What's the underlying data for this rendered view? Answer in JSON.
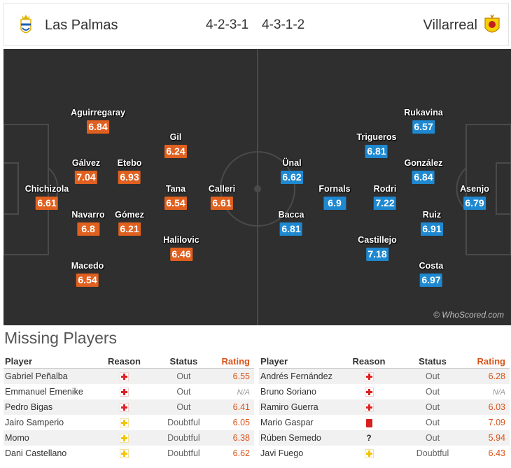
{
  "header": {
    "home_team": "Las Palmas",
    "home_formation": "4-2-3-1",
    "away_formation": "4-3-1-2",
    "away_team": "Villarreal",
    "home_crest_icon": "las-palmas-crest-icon",
    "away_crest_icon": "villarreal-crest-icon"
  },
  "colors": {
    "home": "#e0601f",
    "away": "#1e88d0",
    "pitch": "#2f2f2f"
  },
  "pitch": {
    "watermark": "© WhoScored.com",
    "home_players": [
      {
        "name": "Aguirregaray",
        "rating": "6.84"
      },
      {
        "name": "Gil",
        "rating": "6.24"
      },
      {
        "name": "Gálvez",
        "rating": "7.04"
      },
      {
        "name": "Etebo",
        "rating": "6.93"
      },
      {
        "name": "Chichizola",
        "rating": "6.61"
      },
      {
        "name": "Tana",
        "rating": "6.54"
      },
      {
        "name": "Calleri",
        "rating": "6.61"
      },
      {
        "name": "Navarro",
        "rating": "6.8"
      },
      {
        "name": "Gómez",
        "rating": "6.21"
      },
      {
        "name": "Halilovic",
        "rating": "6.46"
      },
      {
        "name": "Macedo",
        "rating": "6.54"
      }
    ],
    "away_players": [
      {
        "name": "Rukavina",
        "rating": "6.57"
      },
      {
        "name": "Trigueros",
        "rating": "6.81"
      },
      {
        "name": "Ünal",
        "rating": "6.62"
      },
      {
        "name": "González",
        "rating": "6.84"
      },
      {
        "name": "Fornals",
        "rating": "6.9"
      },
      {
        "name": "Rodri",
        "rating": "7.22"
      },
      {
        "name": "Asenjo",
        "rating": "6.79"
      },
      {
        "name": "Bacca",
        "rating": "6.81"
      },
      {
        "name": "Ruiz",
        "rating": "6.91"
      },
      {
        "name": "Castillejo",
        "rating": "7.18"
      },
      {
        "name": "Costa",
        "rating": "6.97"
      }
    ]
  },
  "missing": {
    "title": "Missing Players",
    "columns": {
      "player": "Player",
      "reason": "Reason",
      "status": "Status",
      "rating": "Rating"
    },
    "home": [
      {
        "player": "Gabriel Peñalba",
        "reason": "injury-icon",
        "status": "Out",
        "rating": "6.55"
      },
      {
        "player": "Emmanuel Emenike",
        "reason": "injury-icon",
        "status": "Out",
        "rating": "N/A"
      },
      {
        "player": "Pedro Bigas",
        "reason": "injury-icon",
        "status": "Out",
        "rating": "6.41"
      },
      {
        "player": "Jairo Samperio",
        "reason": "doubtful-icon",
        "status": "Doubtful",
        "rating": "6.05"
      },
      {
        "player": "Momo",
        "reason": "doubtful-icon",
        "status": "Doubtful",
        "rating": "6.38"
      },
      {
        "player": "Dani Castellano",
        "reason": "doubtful-icon",
        "status": "Doubtful",
        "rating": "6.62"
      }
    ],
    "away": [
      {
        "player": "Andrés Fernández",
        "reason": "injury-icon",
        "status": "Out",
        "rating": "6.28"
      },
      {
        "player": "Bruno Soriano",
        "reason": "injury-icon",
        "status": "Out",
        "rating": "N/A"
      },
      {
        "player": "Ramiro Guerra",
        "reason": "injury-icon",
        "status": "Out",
        "rating": "6.03"
      },
      {
        "player": "Mario Gaspar",
        "reason": "red-card-icon",
        "status": "Out",
        "rating": "7.09"
      },
      {
        "player": "Rúben Semedo",
        "reason": "unknown-icon",
        "status": "Out",
        "rating": "5.94"
      },
      {
        "player": "Javi Fuego",
        "reason": "doubtful-icon",
        "status": "Doubtful",
        "rating": "6.43"
      }
    ]
  }
}
